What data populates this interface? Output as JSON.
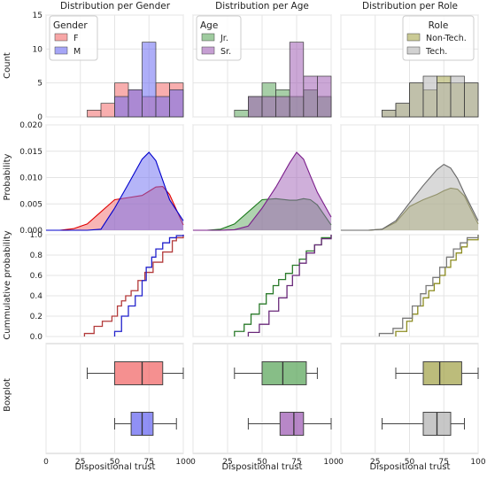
{
  "columns": [
    {
      "title": "Distribution per Gender",
      "legend_title": "Gender",
      "series": [
        {
          "name": "F",
          "color": "#f26b6b"
        },
        {
          "name": "M",
          "color": "#6b6bf2"
        }
      ]
    },
    {
      "title": "Distribution per Age",
      "legend_title": "Age",
      "series": [
        {
          "name": "Jr.",
          "color": "#5fa85f"
        },
        {
          "name": "Sr.",
          "color": "#a05fb5"
        }
      ]
    },
    {
      "title": "Distribution per Role",
      "legend_title": "Role",
      "series": [
        {
          "name": "Non-Tech.",
          "color": "#a6a64f"
        },
        {
          "name": "Tech.",
          "color": "#b4b4b4"
        }
      ]
    }
  ],
  "row_labels": [
    "Count",
    "Probability",
    "Cummulative probability",
    "Boxplot"
  ],
  "xlabel": "Dispositional trust",
  "chart_data": [
    {
      "type": "bar",
      "title": "Distribution per Gender",
      "row": "Count",
      "bin_edges": [
        20,
        30,
        40,
        50,
        60,
        70,
        80,
        90,
        100
      ],
      "ylim": [
        0,
        15
      ],
      "yticks": [
        "0",
        "5",
        "10",
        "15"
      ],
      "series": [
        {
          "name": "F",
          "values": [
            0,
            1,
            2,
            5,
            4,
            3,
            5,
            5
          ]
        },
        {
          "name": "M",
          "values": [
            0,
            0,
            0,
            3,
            4,
            11,
            3,
            4
          ]
        }
      ]
    },
    {
      "type": "bar",
      "title": "Distribution per Age",
      "row": "Count",
      "bin_edges": [
        20,
        30,
        40,
        50,
        60,
        70,
        80,
        90,
        100
      ],
      "ylim": [
        0,
        15
      ],
      "yticks": [
        "0",
        "5",
        "10",
        "15"
      ],
      "series": [
        {
          "name": "Jr.",
          "values": [
            0,
            1,
            3,
            5,
            4,
            3,
            4,
            3
          ]
        },
        {
          "name": "Sr.",
          "values": [
            0,
            0,
            3,
            3,
            3,
            11,
            6,
            6
          ]
        }
      ]
    },
    {
      "type": "bar",
      "title": "Distribution per Role",
      "row": "Count",
      "bin_edges": [
        20,
        30,
        40,
        50,
        60,
        70,
        80,
        90,
        100
      ],
      "ylim": [
        0,
        15
      ],
      "yticks": [
        "0",
        "5",
        "10",
        "15"
      ],
      "series": [
        {
          "name": "Non-Tech.",
          "values": [
            0,
            1,
            2,
            5,
            4,
            6,
            5,
            5
          ]
        },
        {
          "name": "Tech.",
          "values": [
            0,
            1,
            2,
            5,
            6,
            5,
            6,
            5
          ]
        }
      ]
    },
    {
      "type": "area",
      "title": "Distribution per Gender",
      "row": "Probability",
      "x": [
        0,
        10,
        20,
        30,
        40,
        50,
        60,
        70,
        75,
        80,
        85,
        90,
        100
      ],
      "ylim": [
        0,
        0.02
      ],
      "yticks": [
        "0.000",
        "0.005",
        "0.010",
        "0.015",
        "0.020"
      ],
      "series": [
        {
          "name": "F",
          "values": [
            0,
            0,
            0.0003,
            0.0012,
            0.0035,
            0.0058,
            0.0062,
            0.0066,
            0.0074,
            0.0082,
            0.0083,
            0.0068,
            0.001
          ]
        },
        {
          "name": "M",
          "values": [
            0,
            0,
            0,
            0,
            0.0002,
            0.0042,
            0.0088,
            0.0135,
            0.0148,
            0.0132,
            0.0095,
            0.0058,
            0.0018
          ]
        }
      ]
    },
    {
      "type": "area",
      "title": "Distribution per Age",
      "row": "Probability",
      "x": [
        0,
        10,
        20,
        30,
        40,
        50,
        60,
        70,
        75,
        80,
        85,
        90,
        100
      ],
      "ylim": [
        0,
        0.02
      ],
      "yticks": [
        "0.000",
        "0.005",
        "0.010",
        "0.015",
        "0.020"
      ],
      "series": [
        {
          "name": "Jr.",
          "values": [
            0,
            0,
            0.0002,
            0.0012,
            0.0035,
            0.0058,
            0.006,
            0.0057,
            0.0057,
            0.006,
            0.0058,
            0.0048,
            0.001
          ]
        },
        {
          "name": "Sr.",
          "values": [
            0,
            0,
            0,
            0.0001,
            0.0008,
            0.0042,
            0.0082,
            0.0128,
            0.0148,
            0.0135,
            0.0103,
            0.0072,
            0.0025
          ]
        }
      ]
    },
    {
      "type": "area",
      "title": "Distribution per Role",
      "row": "Probability",
      "x": [
        0,
        10,
        20,
        30,
        40,
        50,
        60,
        70,
        75,
        80,
        85,
        90,
        100
      ],
      "ylim": [
        0,
        0.02
      ],
      "yticks": [
        "0.000",
        "0.005",
        "0.010",
        "0.015",
        "0.020"
      ],
      "series": [
        {
          "name": "Non-Tech.",
          "values": [
            0,
            0,
            0,
            0.0002,
            0.0015,
            0.0045,
            0.0058,
            0.0068,
            0.0075,
            0.008,
            0.0078,
            0.0065,
            0.0012
          ]
        },
        {
          "name": "Tech.",
          "values": [
            0,
            0,
            0,
            0.0002,
            0.0018,
            0.0052,
            0.0085,
            0.0115,
            0.0125,
            0.0118,
            0.0098,
            0.007,
            0.0018
          ]
        }
      ]
    },
    {
      "type": "line",
      "title": "Distribution per Gender",
      "row": "Cummulative probability",
      "step": true,
      "ylim": [
        0,
        1
      ],
      "yticks": [
        "0.0",
        "0.2",
        "0.4",
        "0.6",
        "0.8",
        "1.0"
      ],
      "series": [
        {
          "name": "F",
          "x": [
            28,
            35,
            41,
            48,
            52,
            55,
            58,
            62,
            67,
            72,
            78,
            85,
            92,
            95,
            100
          ],
          "values": [
            0.03,
            0.1,
            0.15,
            0.2,
            0.3,
            0.35,
            0.4,
            0.45,
            0.55,
            0.63,
            0.73,
            0.83,
            0.94,
            0.97,
            1.0
          ]
        },
        {
          "name": "M",
          "x": [
            50,
            55,
            60,
            65,
            70,
            73,
            77,
            80,
            85,
            90,
            95,
            100
          ],
          "values": [
            0.05,
            0.2,
            0.3,
            0.4,
            0.55,
            0.68,
            0.78,
            0.86,
            0.92,
            0.97,
            0.99,
            1.0
          ]
        }
      ]
    },
    {
      "type": "line",
      "title": "Distribution per Age",
      "row": "Cummulative probability",
      "step": true,
      "ylim": [
        0,
        1
      ],
      "yticks": [
        "0.0",
        "0.2",
        "0.4",
        "0.6",
        "0.8",
        "1.0"
      ],
      "series": [
        {
          "name": "Jr.",
          "x": [
            30,
            37,
            42,
            48,
            53,
            58,
            62,
            67,
            72,
            77,
            82,
            88,
            93,
            100
          ],
          "values": [
            0.05,
            0.12,
            0.22,
            0.32,
            0.42,
            0.5,
            0.56,
            0.62,
            0.7,
            0.76,
            0.84,
            0.9,
            0.97,
            1.0
          ]
        },
        {
          "name": "Sr.",
          "x": [
            40,
            48,
            55,
            62,
            68,
            72,
            77,
            82,
            88,
            93,
            100
          ],
          "values": [
            0.04,
            0.12,
            0.25,
            0.38,
            0.5,
            0.6,
            0.72,
            0.82,
            0.9,
            0.96,
            1.0
          ]
        }
      ]
    },
    {
      "type": "line",
      "title": "Distribution per Role",
      "row": "Cummulative probability",
      "step": true,
      "ylim": [
        0,
        1
      ],
      "yticks": [
        "0.0",
        "0.2",
        "0.4",
        "0.6",
        "0.8",
        "1.0"
      ],
      "series": [
        {
          "name": "Non-Tech.",
          "x": [
            40,
            48,
            52,
            56,
            60,
            64,
            68,
            72,
            76,
            80,
            84,
            88,
            92,
            100
          ],
          "values": [
            0.05,
            0.15,
            0.22,
            0.3,
            0.38,
            0.45,
            0.52,
            0.6,
            0.68,
            0.75,
            0.82,
            0.88,
            0.95,
            1.0
          ]
        },
        {
          "name": "Tech.",
          "x": [
            28,
            38,
            45,
            52,
            58,
            62,
            67,
            72,
            77,
            82,
            87,
            92,
            100
          ],
          "values": [
            0.03,
            0.08,
            0.18,
            0.3,
            0.42,
            0.5,
            0.58,
            0.68,
            0.78,
            0.86,
            0.92,
            0.97,
            1.0
          ]
        }
      ]
    },
    {
      "type": "box",
      "title": "Distribution per Gender",
      "row": "Boxplot",
      "xlim": [
        0,
        100
      ],
      "xticks": [
        "0",
        "25",
        "50",
        "75",
        "100"
      ],
      "series": [
        {
          "name": "F",
          "whisker_low": 30,
          "q1": 50,
          "median": 70,
          "q3": 85,
          "whisker_high": 100
        },
        {
          "name": "M",
          "whisker_low": 50,
          "q1": 62,
          "median": 70,
          "q3": 78,
          "whisker_high": 95
        }
      ]
    },
    {
      "type": "box",
      "title": "Distribution per Age",
      "row": "Boxplot",
      "xlim": [
        0,
        100
      ],
      "xticks": [
        "0",
        "25",
        "50",
        "75",
        "100"
      ],
      "series": [
        {
          "name": "Jr.",
          "whisker_low": 30,
          "q1": 50,
          "median": 65,
          "q3": 82,
          "whisker_high": 90
        },
        {
          "name": "Sr.",
          "whisker_low": 40,
          "q1": 63,
          "median": 73,
          "q3": 80,
          "whisker_high": 100
        }
      ]
    },
    {
      "type": "box",
      "title": "Distribution per Role",
      "row": "Boxplot",
      "xlim": [
        0,
        100
      ],
      "xticks": [
        "0",
        "25",
        "50",
        "75",
        "100"
      ],
      "series": [
        {
          "name": "Non-Tech.",
          "whisker_low": 40,
          "q1": 60,
          "median": 72,
          "q3": 88,
          "whisker_high": 100
        },
        {
          "name": "Tech.",
          "whisker_low": 30,
          "q1": 60,
          "median": 70,
          "q3": 80,
          "whisker_high": 90
        }
      ]
    }
  ]
}
